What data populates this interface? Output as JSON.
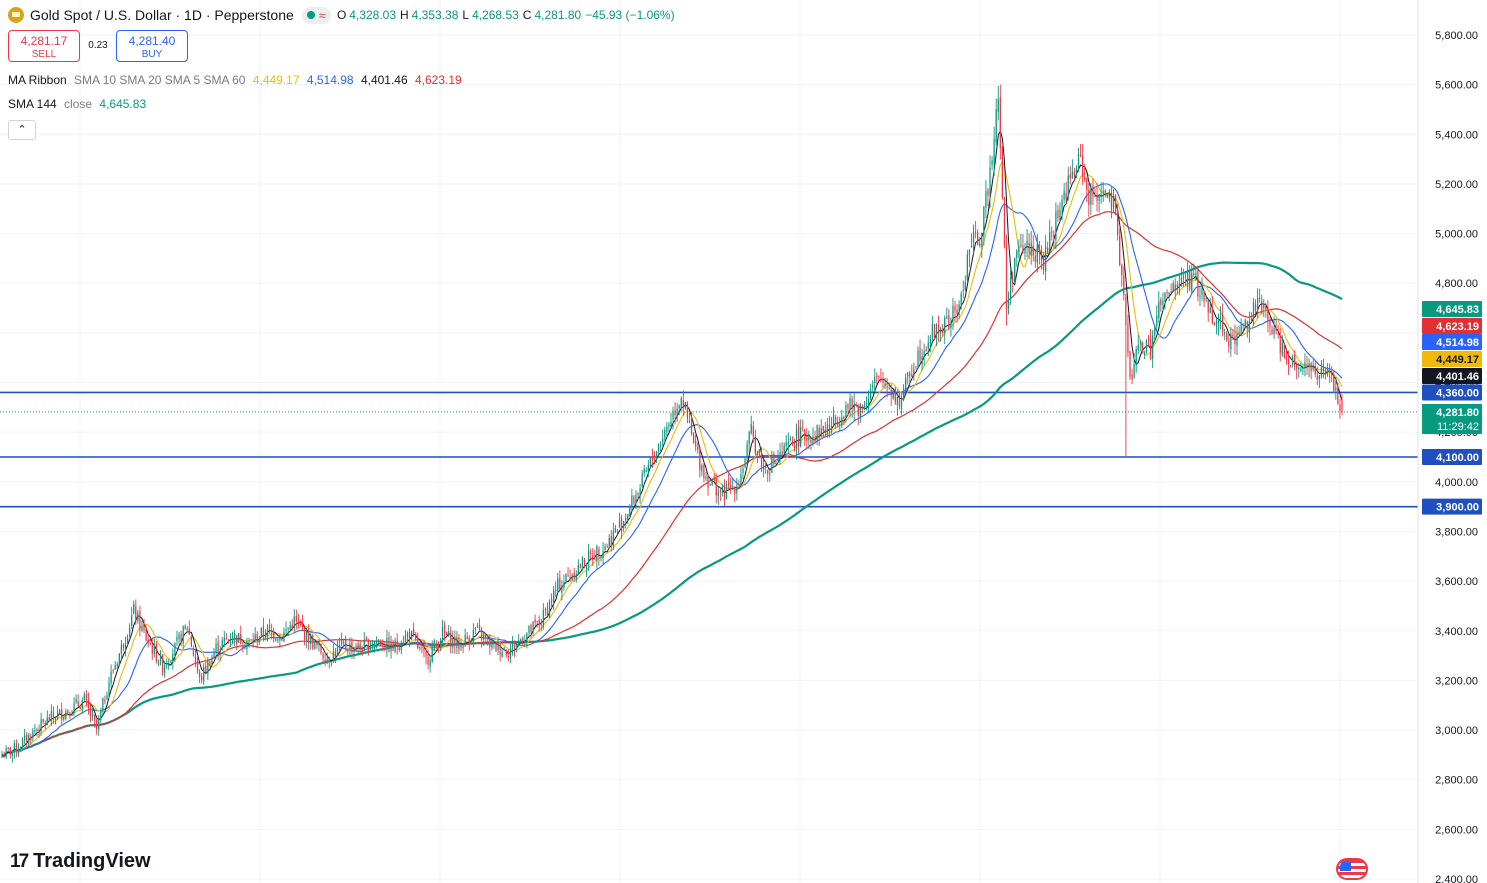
{
  "header": {
    "symbol": "Gold Spot / U.S. Dollar · 1D · Pepperstone",
    "open_label": "O",
    "open": "4,328.03",
    "high_label": "H",
    "high": "4,353.38",
    "low_label": "L",
    "low": "4,268.53",
    "close_label": "C",
    "close": "4,281.80",
    "change": "−45.93 (−1.06%)"
  },
  "trade": {
    "sell_price": "4,281.17",
    "sell_label": "SELL",
    "spread": "0.23",
    "buy_price": "4,281.40",
    "buy_label": "BUY"
  },
  "indicators": {
    "ribbon_name": "MA Ribbon",
    "ribbon_params": "SMA 10 SMA 20 SMA 5 SMA 60",
    "ribbon_values": [
      "4,449.17",
      "4,514.98",
      "4,401.46",
      "4,623.19"
    ],
    "sma144_name": "SMA 144",
    "sma144_params": "close",
    "sma144_value": "4,645.83"
  },
  "collapse_glyph": "⌃",
  "brand": {
    "mark": "17",
    "name": "TradingView"
  },
  "colors": {
    "up": "#089981",
    "down": "#f23645",
    "ma5": "#131722",
    "ma10": "#f0b90b",
    "ma20": "#2962ff",
    "ma60": "#e22f2f",
    "sma144": "#089981",
    "hline": "#1f4fc0"
  },
  "chart_data": {
    "type": "candlestick",
    "title": "Gold Spot / U.S. Dollar · 1D · Pepperstone",
    "ylim": [
      2400,
      5900
    ],
    "y_ticks": [
      "2,400.00",
      "2,600.00",
      "2,800.00",
      "3,000.00",
      "3,200.00",
      "3,400.00",
      "3,600.00",
      "3,800.00",
      "4,000.00",
      "4,200.00",
      "4,400.00",
      "4,600.00",
      "4,800.00",
      "5,000.00",
      "5,200.00",
      "5,400.00",
      "5,600.00",
      "5,800.00"
    ],
    "y_tick_values": [
      2400,
      2600,
      2800,
      3000,
      3200,
      3400,
      3600,
      3800,
      4000,
      4200,
      4400,
      4600,
      4800,
      5000,
      5200,
      5400,
      5600,
      5800
    ],
    "horizontal_lines": [
      4360,
      4100,
      3900
    ],
    "horizontal_line_labels": [
      "4,360.00",
      "4,100.00",
      "3,900.00"
    ],
    "last_price": 4281.8,
    "last_price_label": "4,281.80",
    "countdown": "11:29:42",
    "price_tags": [
      {
        "label": "4,645.83",
        "value": 4645.83,
        "color": "#089981"
      },
      {
        "label": "4,623.19",
        "value": 4623.19,
        "color": "#e22f2f"
      },
      {
        "label": "4,514.98",
        "value": 4514.98,
        "color": "#2962ff"
      },
      {
        "label": "4,449.17",
        "value": 4449.17,
        "color": "#f0b90b"
      },
      {
        "label": "4,401.46",
        "value": 4401.46,
        "color": "#131722"
      }
    ],
    "anchor_closes": [
      [
        0,
        2900
      ],
      [
        8,
        2930
      ],
      [
        16,
        3000
      ],
      [
        24,
        3050
      ],
      [
        32,
        3080
      ],
      [
        40,
        3120
      ],
      [
        46,
        3000
      ],
      [
        52,
        3200
      ],
      [
        58,
        3330
      ],
      [
        64,
        3480
      ],
      [
        70,
        3370
      ],
      [
        78,
        3260
      ],
      [
        84,
        3330
      ],
      [
        90,
        3420
      ],
      [
        96,
        3200
      ],
      [
        104,
        3330
      ],
      [
        112,
        3380
      ],
      [
        120,
        3350
      ],
      [
        128,
        3400
      ],
      [
        136,
        3380
      ],
      [
        142,
        3440
      ],
      [
        150,
        3360
      ],
      [
        158,
        3290
      ],
      [
        166,
        3340
      ],
      [
        174,
        3330
      ],
      [
        182,
        3360
      ],
      [
        190,
        3330
      ],
      [
        198,
        3390
      ],
      [
        206,
        3280
      ],
      [
        214,
        3390
      ],
      [
        222,
        3340
      ],
      [
        230,
        3400
      ],
      [
        238,
        3340
      ],
      [
        246,
        3320
      ],
      [
        254,
        3380
      ],
      [
        262,
        3440
      ],
      [
        270,
        3580
      ],
      [
        278,
        3640
      ],
      [
        286,
        3700
      ],
      [
        294,
        3750
      ],
      [
        302,
        3850
      ],
      [
        310,
        3980
      ],
      [
        318,
        4130
      ],
      [
        324,
        4240
      ],
      [
        330,
        4350
      ],
      [
        336,
        4150
      ],
      [
        342,
        4020
      ],
      [
        350,
        3950
      ],
      [
        358,
        4000
      ],
      [
        364,
        4200
      ],
      [
        370,
        4050
      ],
      [
        378,
        4100
      ],
      [
        386,
        4180
      ],
      [
        394,
        4190
      ],
      [
        402,
        4220
      ],
      [
        410,
        4300
      ],
      [
        418,
        4300
      ],
      [
        424,
        4400
      ],
      [
        430,
        4400
      ],
      [
        436,
        4320
      ],
      [
        444,
        4500
      ],
      [
        452,
        4600
      ],
      [
        460,
        4640
      ],
      [
        466,
        4730
      ],
      [
        470,
        4950
      ],
      [
        476,
        5000
      ],
      [
        480,
        5260
      ],
      [
        484,
        5580
      ],
      [
        488,
        4700
      ],
      [
        492,
        4900
      ],
      [
        496,
        4940
      ],
      [
        500,
        4950
      ],
      [
        506,
        4880
      ],
      [
        512,
        5060
      ],
      [
        518,
        5200
      ],
      [
        524,
        5300
      ],
      [
        528,
        5140
      ],
      [
        534,
        5180
      ],
      [
        540,
        5100
      ],
      [
        544,
        4850
      ],
      [
        548,
        4400
      ],
      [
        552,
        4550
      ],
      [
        558,
        4530
      ],
      [
        562,
        4700
      ],
      [
        568,
        4760
      ],
      [
        574,
        4820
      ],
      [
        580,
        4800
      ],
      [
        586,
        4700
      ],
      [
        592,
        4640
      ],
      [
        598,
        4560
      ],
      [
        604,
        4640
      ],
      [
        610,
        4720
      ],
      [
        616,
        4640
      ],
      [
        622,
        4540
      ],
      [
        628,
        4480
      ],
      [
        634,
        4470
      ],
      [
        640,
        4430
      ],
      [
        646,
        4420
      ],
      [
        650,
        4300
      ],
      [
        651,
        4281.8
      ]
    ]
  }
}
